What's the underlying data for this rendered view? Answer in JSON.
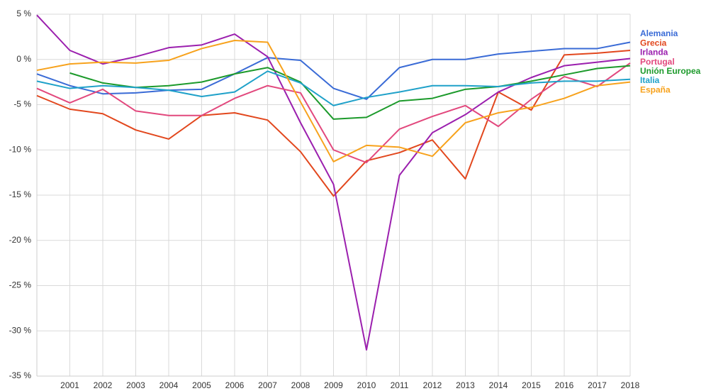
{
  "chart_data": {
    "type": "line",
    "x": [
      2000,
      2001,
      2002,
      2003,
      2004,
      2005,
      2006,
      2007,
      2008,
      2009,
      2010,
      2011,
      2012,
      2013,
      2014,
      2015,
      2016,
      2017,
      2018
    ],
    "xlim": [
      2000,
      2018
    ],
    "xticks": [
      2001,
      2002,
      2003,
      2004,
      2005,
      2006,
      2007,
      2008,
      2009,
      2010,
      2011,
      2012,
      2013,
      2014,
      2015,
      2016,
      2017,
      2018
    ],
    "ylim": [
      -35,
      5
    ],
    "yticks": [
      {
        "value": -35,
        "label": "-35 %"
      },
      {
        "value": -30,
        "label": "-30 %"
      },
      {
        "value": -25,
        "label": "-25 %"
      },
      {
        "value": -20,
        "label": "-20 %"
      },
      {
        "value": -15,
        "label": "-15 %"
      },
      {
        "value": -10,
        "label": "-10 %"
      },
      {
        "value": -5,
        "label": "-5 %"
      },
      {
        "value": 0,
        "label": "0 %"
      },
      {
        "value": 5,
        "label": "5 %"
      }
    ],
    "grid": true,
    "legend": "right",
    "series": [
      {
        "name": "Alemania",
        "color": "#3a6bd6",
        "values": [
          -1.6,
          -2.9,
          -3.8,
          -3.7,
          -3.4,
          -3.3,
          -1.6,
          0.2,
          -0.1,
          -3.2,
          -4.4,
          -0.9,
          0.0,
          0.0,
          0.6,
          0.9,
          1.2,
          1.2,
          1.9
        ]
      },
      {
        "name": "Grecia",
        "color": "#e2471d",
        "values": [
          -4.0,
          -5.5,
          -6.0,
          -7.8,
          -8.8,
          -6.2,
          -5.9,
          -6.7,
          -10.2,
          -15.1,
          -11.2,
          -10.3,
          -8.9,
          -13.2,
          -3.6,
          -5.6,
          0.5,
          0.7,
          1.0
        ]
      },
      {
        "name": "Irlanda",
        "color": "#9b1fae",
        "values": [
          4.9,
          1.0,
          -0.5,
          0.3,
          1.3,
          1.6,
          2.8,
          0.3,
          -7.0,
          -13.8,
          -32.1,
          -12.8,
          -8.1,
          -6.1,
          -3.6,
          -2.0,
          -0.7,
          -0.3,
          0.1
        ]
      },
      {
        "name": "Portugal",
        "color": "#e2487d",
        "values": [
          -3.2,
          -4.8,
          -3.3,
          -5.7,
          -6.2,
          -6.2,
          -4.3,
          -2.9,
          -3.7,
          -10.0,
          -11.4,
          -7.7,
          -6.3,
          -5.1,
          -7.4,
          -4.4,
          -1.9,
          -3.0,
          -0.4
        ]
      },
      {
        "name": "Unión Europea",
        "color": "#1c9a2b",
        "values": [
          null,
          -1.5,
          -2.6,
          -3.1,
          -2.9,
          -2.5,
          -1.6,
          -0.9,
          -2.5,
          -6.6,
          -6.4,
          -4.6,
          -4.3,
          -3.3,
          -3.0,
          -2.4,
          -1.7,
          -1.0,
          -0.7
        ]
      },
      {
        "name": "Italia",
        "color": "#1fa1c9",
        "values": [
          -2.4,
          -3.2,
          -2.9,
          -3.1,
          -3.4,
          -4.1,
          -3.6,
          -1.3,
          -2.6,
          -5.1,
          -4.2,
          -3.6,
          -2.9,
          -2.9,
          -3.0,
          -2.6,
          -2.4,
          -2.4,
          -2.2
        ]
      },
      {
        "name": "España",
        "color": "#f7a21c",
        "values": [
          -1.2,
          -0.5,
          -0.3,
          -0.4,
          -0.1,
          1.2,
          2.1,
          1.9,
          -4.7,
          -11.3,
          -9.5,
          -9.7,
          -10.7,
          -7.0,
          -5.9,
          -5.3,
          -4.3,
          -2.9,
          -2.5
        ]
      }
    ]
  }
}
